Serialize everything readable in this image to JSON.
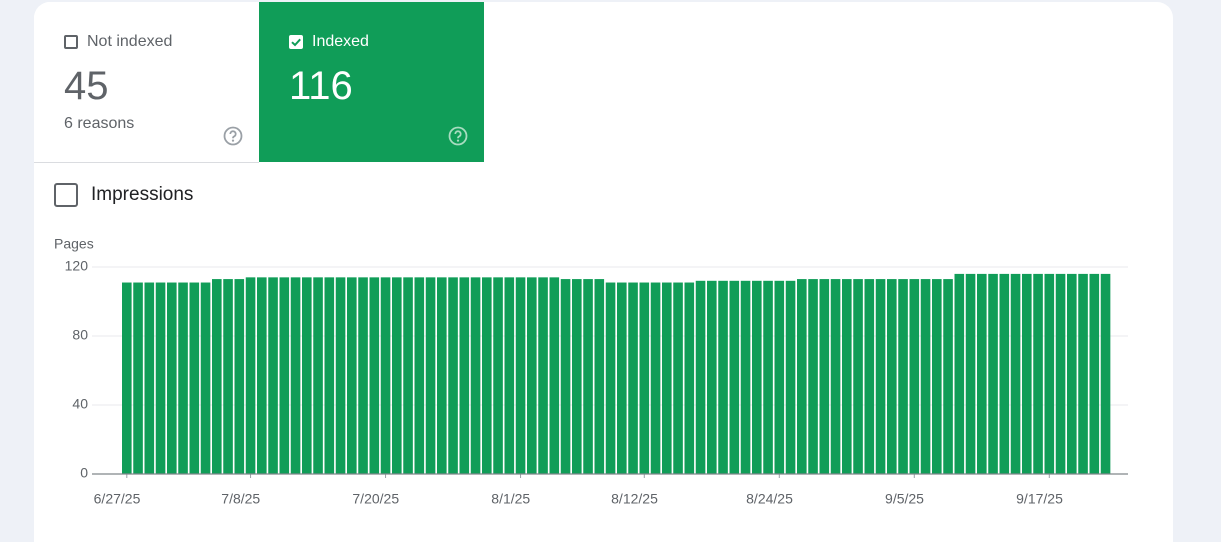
{
  "tabs": [
    {
      "label": "Not indexed",
      "value": 45,
      "detail": "6 reasons",
      "checked": false
    },
    {
      "label": "Indexed",
      "value": 116,
      "checked": true
    }
  ],
  "impressions": {
    "label": "Impressions",
    "checked": false
  },
  "chart_data": {
    "type": "bar",
    "y_label": "Pages",
    "color": "#109d58",
    "categories": [
      "6/27/25",
      null,
      null,
      null,
      null,
      null,
      null,
      null,
      null,
      null,
      null,
      "7/8/25",
      null,
      null,
      null,
      null,
      null,
      null,
      null,
      null,
      null,
      null,
      null,
      "7/20/25",
      null,
      null,
      null,
      null,
      null,
      null,
      null,
      null,
      null,
      null,
      null,
      "8/1/25",
      null,
      null,
      null,
      null,
      null,
      null,
      null,
      null,
      null,
      null,
      "8/12/25",
      null,
      null,
      null,
      null,
      null,
      null,
      null,
      null,
      null,
      null,
      null,
      "8/24/25",
      null,
      null,
      null,
      null,
      null,
      null,
      null,
      null,
      null,
      null,
      null,
      "9/5/25",
      null,
      null,
      null,
      null,
      null,
      null,
      null,
      null,
      null,
      null,
      null,
      "9/17/25",
      null,
      null,
      null,
      null,
      null
    ],
    "values": [
      111,
      111,
      111,
      111,
      111,
      111,
      111,
      111,
      113,
      113,
      113,
      114,
      114,
      114,
      114,
      114,
      114,
      114,
      114,
      114,
      114,
      114,
      114,
      114,
      114,
      114,
      114,
      114,
      114,
      114,
      114,
      114,
      114,
      114,
      114,
      114,
      114,
      114,
      114,
      113,
      113,
      113,
      113,
      111,
      111,
      111,
      111,
      111,
      111,
      111,
      111,
      112,
      112,
      112,
      112,
      112,
      112,
      112,
      112,
      112,
      113,
      113,
      113,
      113,
      113,
      113,
      113,
      113,
      113,
      113,
      113,
      113,
      113,
      113,
      116,
      116,
      116,
      116,
      116,
      116,
      116,
      116,
      116,
      116,
      116,
      116,
      116,
      116
    ],
    "ylim": [
      0,
      120
    ],
    "yticks": [
      0,
      40,
      80,
      120
    ],
    "grid": true
  }
}
